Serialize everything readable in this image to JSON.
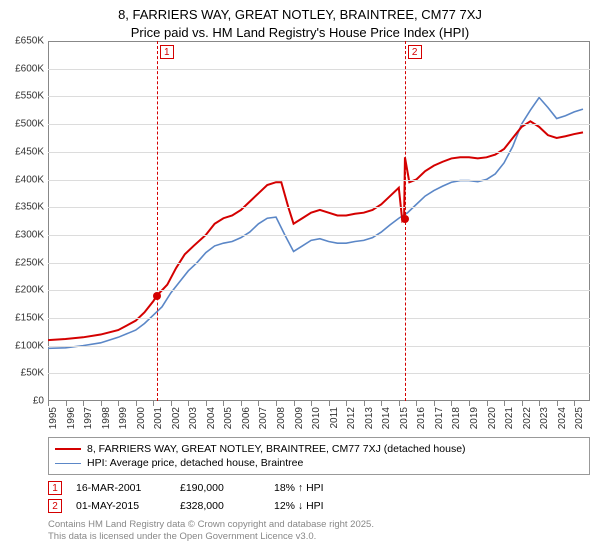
{
  "title_line1": "8, FARRIERS WAY, GREAT NOTLEY, BRAINTREE, CM77 7XJ",
  "title_line2": "Price paid vs. HM Land Registry's House Price Index (HPI)",
  "chart": {
    "type": "line",
    "background_color": "#ffffff",
    "grid_color": "#dcdcdc",
    "axis_color": "#888888",
    "band_color": "#e8eef6",
    "title_fontsize": 13,
    "label_fontsize": 10,
    "x_start": 1995,
    "x_end": 2025.9,
    "xticks": [
      1995,
      1996,
      1997,
      1998,
      1999,
      2000,
      2001,
      2002,
      2003,
      2004,
      2005,
      2006,
      2007,
      2008,
      2009,
      2010,
      2011,
      2012,
      2013,
      2014,
      2015,
      2016,
      2017,
      2018,
      2019,
      2020,
      2021,
      2022,
      2023,
      2024,
      2025
    ],
    "xtick_labels": [
      "1995",
      "1996",
      "1997",
      "1998",
      "1999",
      "2000",
      "2001",
      "2002",
      "2003",
      "2004",
      "2005",
      "2006",
      "2007",
      "2008",
      "2009",
      "2010",
      "2011",
      "2012",
      "2013",
      "2014",
      "2015",
      "2016",
      "2017",
      "2018",
      "2019",
      "2020",
      "2021",
      "2022",
      "2023",
      "2024",
      "2025"
    ],
    "y_min": 0,
    "y_max": 650000,
    "ytick_step": 50000,
    "ytick_labels": [
      "£0",
      "£50K",
      "£100K",
      "£150K",
      "£200K",
      "£250K",
      "£300K",
      "£350K",
      "£400K",
      "£450K",
      "£500K",
      "£550K",
      "£600K",
      "£650K"
    ],
    "bands": [
      {
        "from": 1999,
        "to": 2001
      },
      {
        "from": 2003,
        "to": 2005
      },
      {
        "from": 2007,
        "to": 2009
      },
      {
        "from": 2011,
        "to": 2013
      },
      {
        "from": 2015,
        "to": 2017
      },
      {
        "from": 2019,
        "to": 2021
      },
      {
        "from": 2023,
        "to": 2025
      }
    ],
    "series": [
      {
        "id": "property",
        "label": "8, FARRIERS WAY, GREAT NOTLEY, BRAINTREE, CM77 7XJ (detached house)",
        "color": "#d40000",
        "line_width": 2,
        "points": [
          [
            1995,
            110000
          ],
          [
            1996,
            112000
          ],
          [
            1997,
            115000
          ],
          [
            1998,
            120000
          ],
          [
            1999,
            128000
          ],
          [
            2000,
            145000
          ],
          [
            2000.5,
            160000
          ],
          [
            2001,
            180000
          ],
          [
            2001.2,
            190000
          ],
          [
            2001.8,
            210000
          ],
          [
            2002.3,
            240000
          ],
          [
            2002.8,
            265000
          ],
          [
            2003.3,
            280000
          ],
          [
            2004,
            300000
          ],
          [
            2004.5,
            320000
          ],
          [
            2005,
            330000
          ],
          [
            2005.5,
            335000
          ],
          [
            2006,
            345000
          ],
          [
            2006.5,
            360000
          ],
          [
            2007,
            375000
          ],
          [
            2007.5,
            390000
          ],
          [
            2008,
            395000
          ],
          [
            2008.3,
            395000
          ],
          [
            2008.7,
            350000
          ],
          [
            2009,
            320000
          ],
          [
            2009.5,
            330000
          ],
          [
            2010,
            340000
          ],
          [
            2010.5,
            345000
          ],
          [
            2011,
            340000
          ],
          [
            2011.5,
            335000
          ],
          [
            2012,
            335000
          ],
          [
            2012.5,
            338000
          ],
          [
            2013,
            340000
          ],
          [
            2013.5,
            345000
          ],
          [
            2014,
            355000
          ],
          [
            2014.5,
            370000
          ],
          [
            2015,
            385000
          ],
          [
            2015.2,
            325000
          ],
          [
            2015.3,
            328000
          ],
          [
            2015.35,
            440000
          ],
          [
            2015.6,
            395000
          ],
          [
            2016,
            400000
          ],
          [
            2016.5,
            415000
          ],
          [
            2017,
            425000
          ],
          [
            2017.5,
            432000
          ],
          [
            2018,
            438000
          ],
          [
            2018.5,
            440000
          ],
          [
            2019,
            440000
          ],
          [
            2019.5,
            438000
          ],
          [
            2020,
            440000
          ],
          [
            2020.5,
            445000
          ],
          [
            2021,
            455000
          ],
          [
            2021.5,
            475000
          ],
          [
            2022,
            495000
          ],
          [
            2022.5,
            505000
          ],
          [
            2023,
            495000
          ],
          [
            2023.5,
            480000
          ],
          [
            2024,
            475000
          ],
          [
            2024.5,
            478000
          ],
          [
            2025,
            482000
          ],
          [
            2025.5,
            485000
          ]
        ]
      },
      {
        "id": "hpi",
        "label": "HPI: Average price, detached house, Braintree",
        "color": "#5b87c7",
        "line_width": 1.6,
        "points": [
          [
            1995,
            95000
          ],
          [
            1996,
            96000
          ],
          [
            1997,
            100000
          ],
          [
            1998,
            105000
          ],
          [
            1999,
            115000
          ],
          [
            2000,
            128000
          ],
          [
            2000.5,
            140000
          ],
          [
            2001,
            155000
          ],
          [
            2001.5,
            170000
          ],
          [
            2002,
            195000
          ],
          [
            2002.5,
            215000
          ],
          [
            2003,
            235000
          ],
          [
            2003.5,
            250000
          ],
          [
            2004,
            268000
          ],
          [
            2004.5,
            280000
          ],
          [
            2005,
            285000
          ],
          [
            2005.5,
            288000
          ],
          [
            2006,
            295000
          ],
          [
            2006.5,
            305000
          ],
          [
            2007,
            320000
          ],
          [
            2007.5,
            330000
          ],
          [
            2008,
            332000
          ],
          [
            2008.5,
            300000
          ],
          [
            2009,
            270000
          ],
          [
            2009.5,
            280000
          ],
          [
            2010,
            290000
          ],
          [
            2010.5,
            293000
          ],
          [
            2011,
            288000
          ],
          [
            2011.5,
            285000
          ],
          [
            2012,
            285000
          ],
          [
            2012.5,
            288000
          ],
          [
            2013,
            290000
          ],
          [
            2013.5,
            295000
          ],
          [
            2014,
            305000
          ],
          [
            2014.5,
            318000
          ],
          [
            2015,
            330000
          ],
          [
            2015.5,
            340000
          ],
          [
            2016,
            355000
          ],
          [
            2016.5,
            370000
          ],
          [
            2017,
            380000
          ],
          [
            2017.5,
            388000
          ],
          [
            2018,
            395000
          ],
          [
            2018.5,
            398000
          ],
          [
            2019,
            398000
          ],
          [
            2019.5,
            396000
          ],
          [
            2020,
            400000
          ],
          [
            2020.5,
            410000
          ],
          [
            2021,
            430000
          ],
          [
            2021.5,
            460000
          ],
          [
            2022,
            500000
          ],
          [
            2022.5,
            525000
          ],
          [
            2023,
            548000
          ],
          [
            2023.5,
            530000
          ],
          [
            2024,
            510000
          ],
          [
            2024.5,
            515000
          ],
          [
            2025,
            522000
          ],
          [
            2025.5,
            527000
          ]
        ]
      }
    ],
    "markers": [
      {
        "n": "1",
        "x": 2001.2,
        "y": 190000,
        "color": "#d40000"
      },
      {
        "n": "2",
        "x": 2015.33,
        "y": 328000,
        "color": "#d40000"
      }
    ]
  },
  "events": [
    {
      "n": "1",
      "date": "16-MAR-2001",
      "price": "£190,000",
      "rel": "18% ↑ HPI",
      "color": "#d40000"
    },
    {
      "n": "2",
      "date": "01-MAY-2015",
      "price": "£328,000",
      "rel": "12% ↓ HPI",
      "color": "#d40000"
    }
  ],
  "attribution_line1": "Contains HM Land Registry data © Crown copyright and database right 2025.",
  "attribution_line2": "This data is licensed under the Open Government Licence v3.0."
}
